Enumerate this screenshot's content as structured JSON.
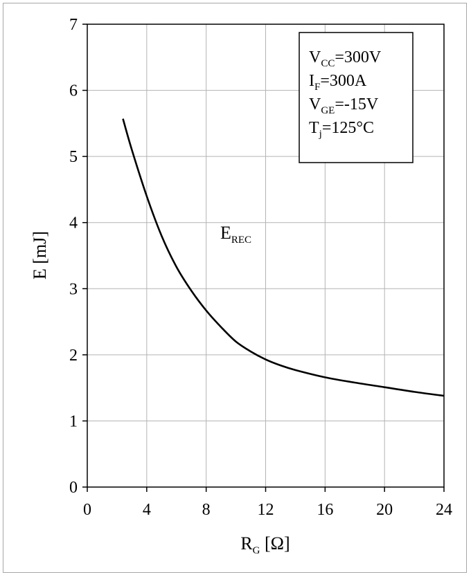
{
  "chart_data": {
    "type": "line",
    "xlabel": "R",
    "xlabel_sub": "G",
    "xlabel_unit": " [Ω]",
    "ylabel": "E [mJ]",
    "xlim": [
      0,
      24
    ],
    "ylim": [
      0,
      7
    ],
    "x_ticks": [
      "0",
      "4",
      "8",
      "12",
      "16",
      "20",
      "24"
    ],
    "y_ticks": [
      "0",
      "1",
      "2",
      "3",
      "4",
      "5",
      "6",
      "7"
    ],
    "grid": true,
    "series": [
      {
        "name": "E",
        "name_sub": "REC",
        "x": [
          2.4,
          3.0,
          4.0,
          5.0,
          6.0,
          7.0,
          8.0,
          9.0,
          10.0,
          11.0,
          12.0,
          13.0,
          14.0,
          16.0,
          18.0,
          20.0,
          22.0,
          24.0
        ],
        "y": [
          5.57,
          5.1,
          4.4,
          3.8,
          3.33,
          2.97,
          2.67,
          2.42,
          2.2,
          2.05,
          1.93,
          1.84,
          1.77,
          1.66,
          1.58,
          1.51,
          1.44,
          1.38
        ]
      }
    ],
    "conditions": [
      {
        "main": "V",
        "sub": "CC",
        "rest": "=300V"
      },
      {
        "main": "I",
        "sub": "F",
        "rest": "=300A"
      },
      {
        "main": "V",
        "sub": "GE",
        "rest": "=-15V"
      },
      {
        "main": "T",
        "sub": "j",
        "rest": "=125°C"
      }
    ],
    "line_color": "#000000",
    "grid_color": "#b3b3b3"
  }
}
